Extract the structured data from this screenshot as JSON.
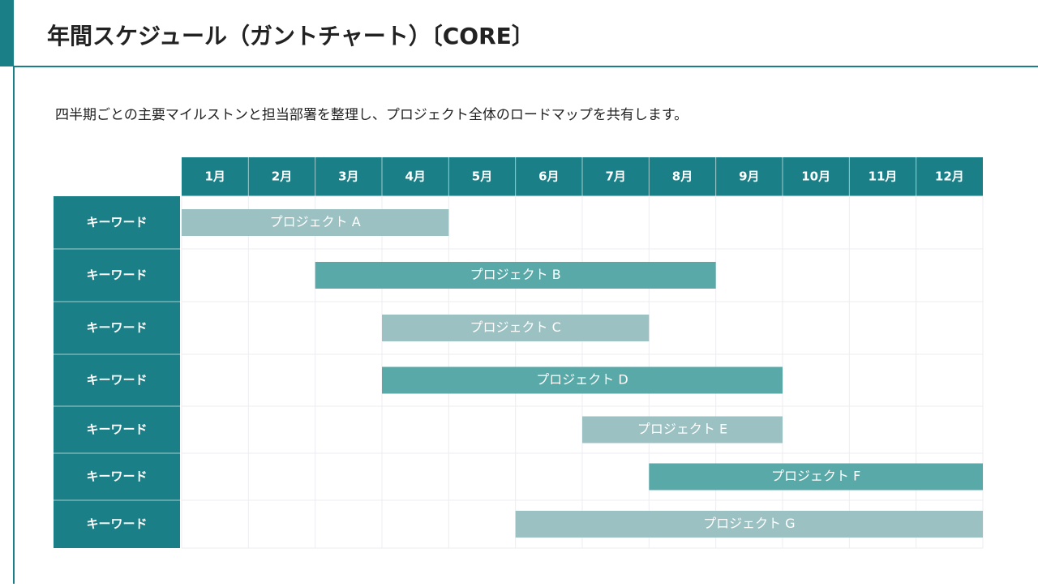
{
  "chart_data": {
    "type": "gantt",
    "title": "年間スケジュール（ガントチャート）〔CORE〕",
    "subtitle": "四半期ごとの主要マイルストンと担当部署を整理し、プロジェクト全体のロードマップを共有します。",
    "categories": [
      "1月",
      "2月",
      "3月",
      "4月",
      "5月",
      "6月",
      "7月",
      "8月",
      "9月",
      "10月",
      "11月",
      "12月"
    ],
    "xlim": [
      0,
      12
    ],
    "tasks": [
      {
        "label": "キーワード",
        "name": "プロジェクト A",
        "start": 0,
        "end": 4,
        "color": "#9cc1c2"
      },
      {
        "label": "キーワード",
        "name": "プロジェクト B",
        "start": 2,
        "end": 8,
        "color": "#5aa9a9"
      },
      {
        "label": "キーワード",
        "name": "プロジェクト C",
        "start": 3,
        "end": 7,
        "color": "#9cc1c2"
      },
      {
        "label": "キーワード",
        "name": "プロジェクト D",
        "start": 3,
        "end": 9,
        "color": "#5aa9a9"
      },
      {
        "label": "キーワード",
        "name": "プロジェクト E",
        "start": 6,
        "end": 9,
        "color": "#9cc1c2"
      },
      {
        "label": "キーワード",
        "name": "プロジェクト F",
        "start": 7,
        "end": 12,
        "color": "#5aa9a9"
      },
      {
        "label": "キーワード",
        "name": "プロジェクト G",
        "start": 5,
        "end": 12,
        "color": "#9cc1c2"
      }
    ]
  }
}
